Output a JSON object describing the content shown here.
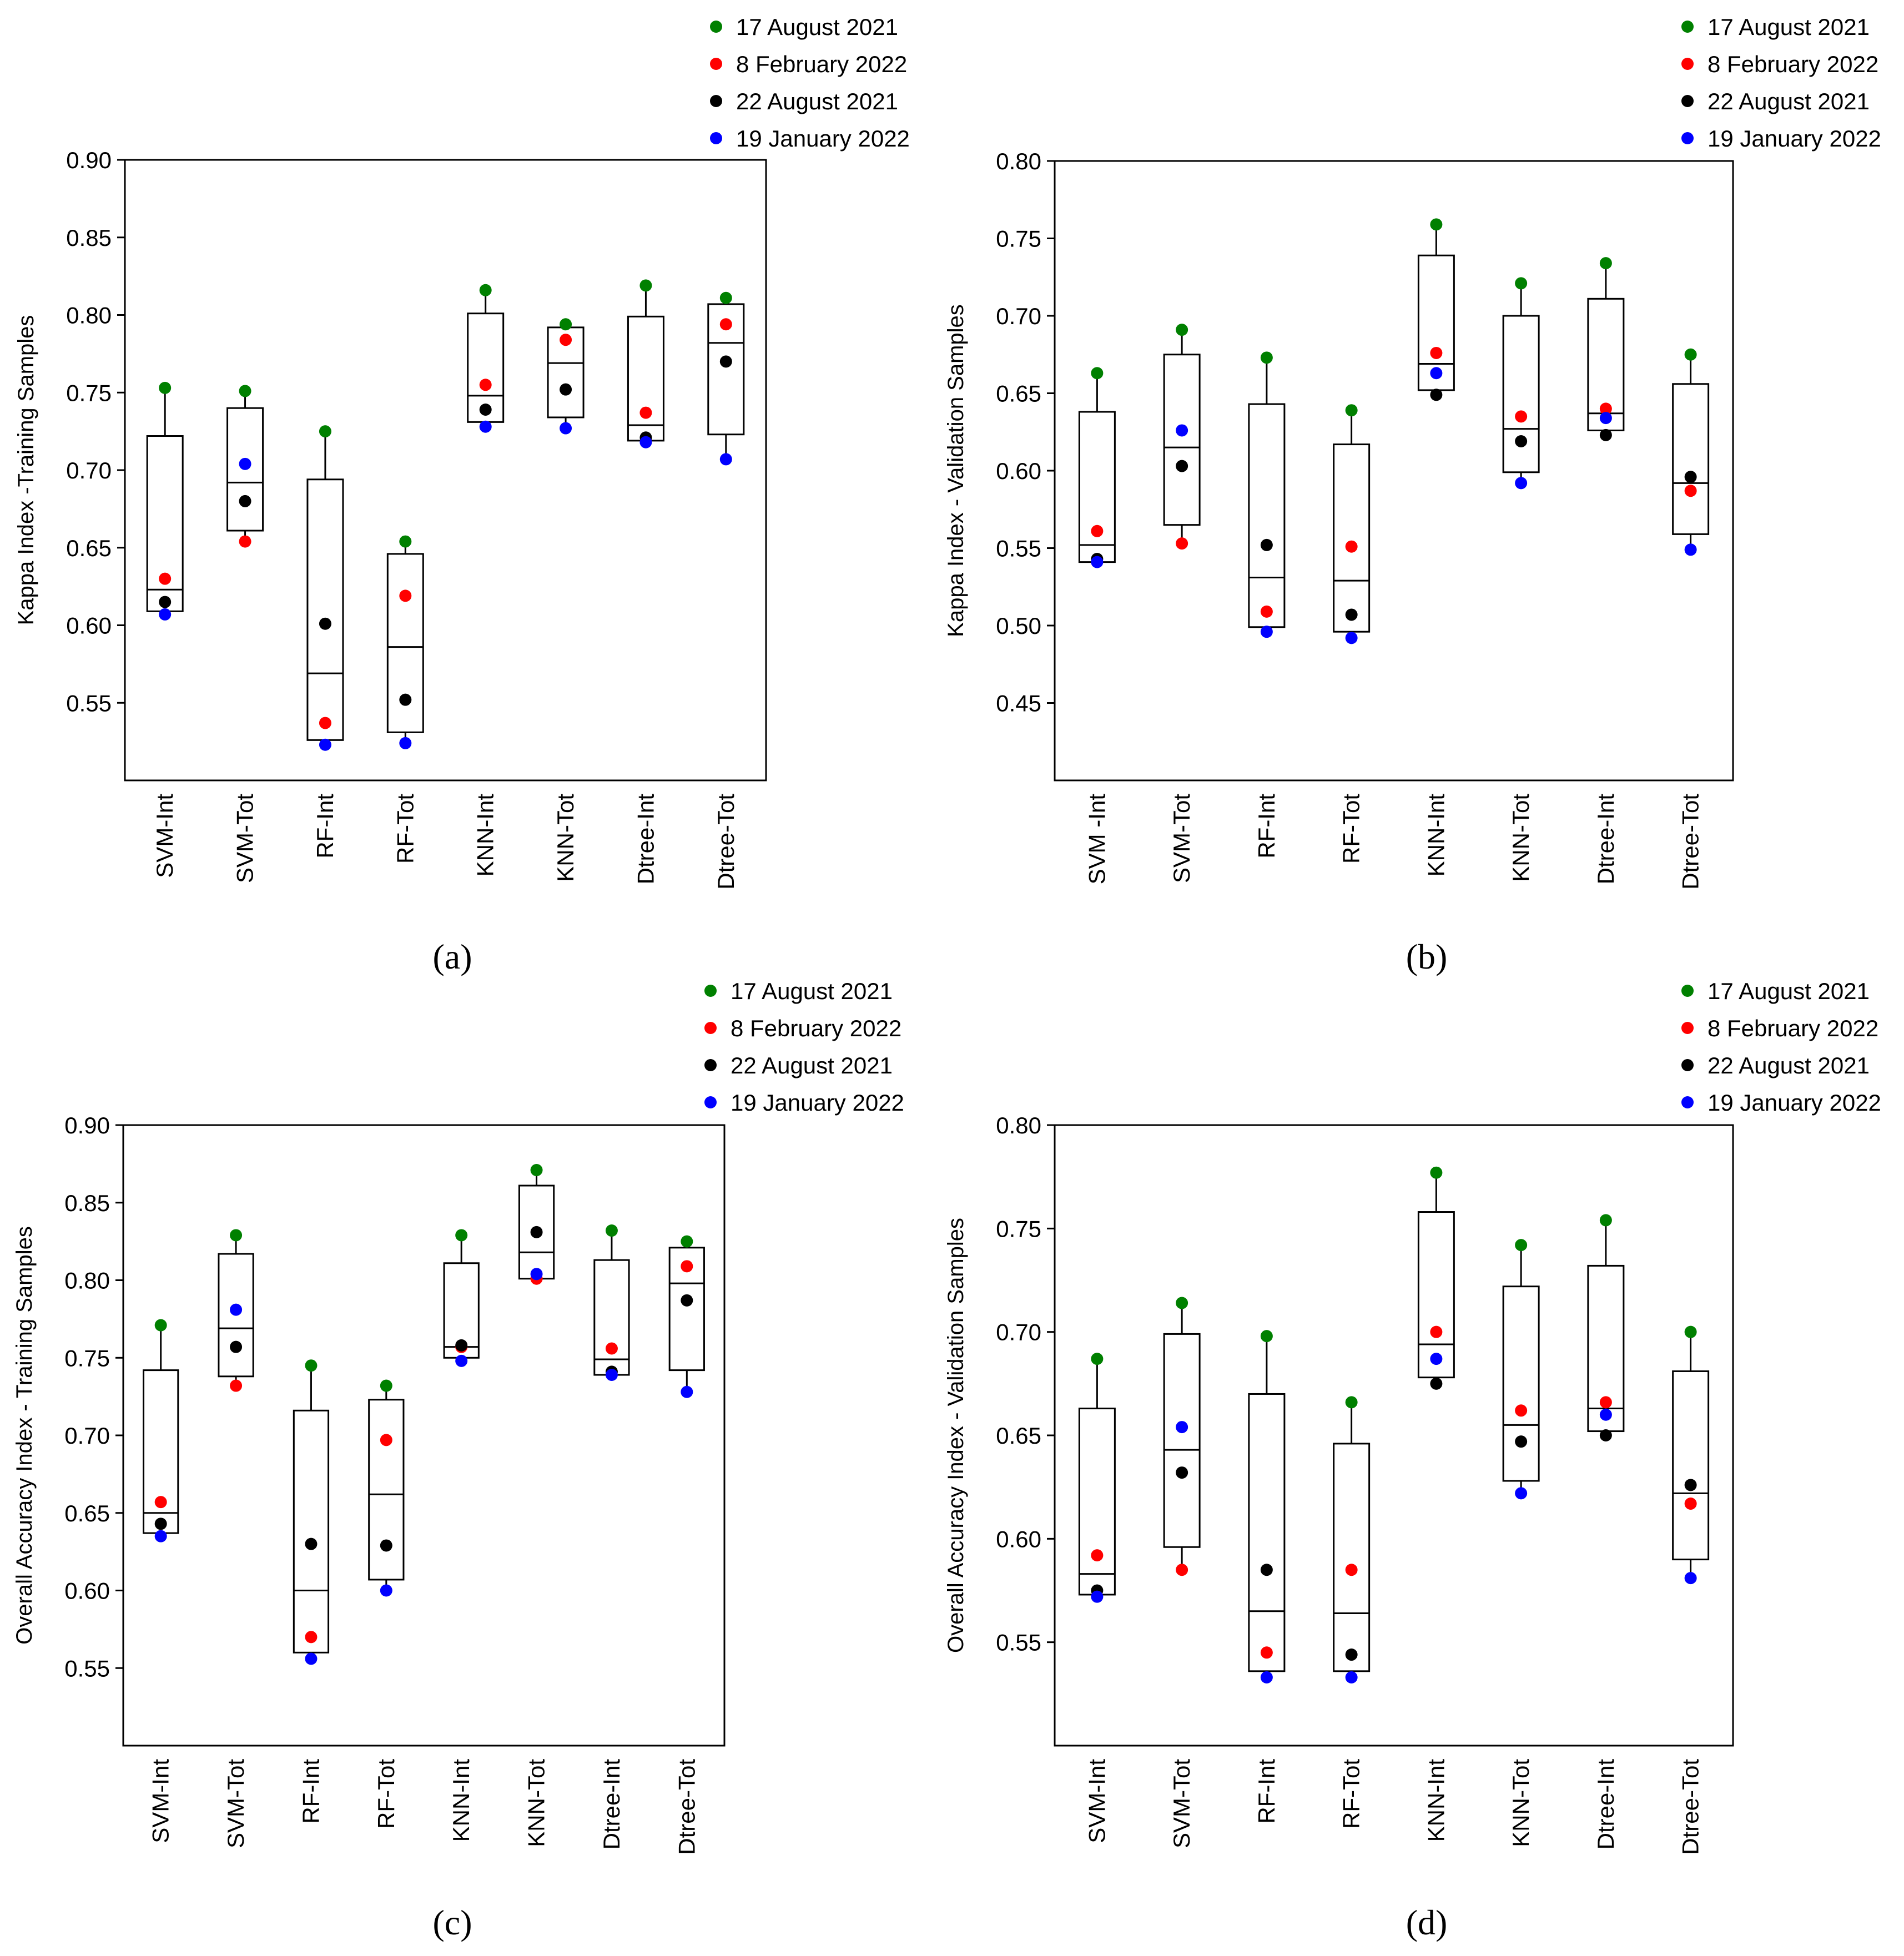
{
  "figure": {
    "legend_entries": [
      {
        "label": "17 August 2021",
        "color": "#008000"
      },
      {
        "label": "8 February 2022",
        "color": "#ff0000"
      },
      {
        "label": "22 August 2021",
        "color": "#000000"
      },
      {
        "label": "19 January 2022",
        "color": "#0000ff"
      }
    ]
  },
  "chart_data": [
    {
      "type": "box",
      "panel_label": "(a)",
      "ylabel": "Kappa Index -Training Samples",
      "xlabel": "",
      "ylim": [
        0.5,
        0.9
      ],
      "yticks": [
        "0.90",
        "0.85",
        "0.80",
        "0.75",
        "0.70",
        "0.65",
        "0.60",
        "0.55"
      ],
      "categories": [
        "SVM-Int",
        "SVM-Tot",
        "RF-Int",
        "RF-Tot",
        "KNN-Int",
        "KNN-Tot",
        "Dtree-Int",
        "Dtree-Tot"
      ],
      "boxes": [
        {
          "q1": 0.609,
          "median": 0.623,
          "q3": 0.722
        },
        {
          "q1": 0.661,
          "median": 0.692,
          "q3": 0.74
        },
        {
          "q1": 0.526,
          "median": 0.569,
          "q3": 0.694
        },
        {
          "q1": 0.531,
          "median": 0.586,
          "q3": 0.646
        },
        {
          "q1": 0.731,
          "median": 0.748,
          "q3": 0.801
        },
        {
          "q1": 0.734,
          "median": 0.769,
          "q3": 0.792
        },
        {
          "q1": 0.719,
          "median": 0.729,
          "q3": 0.799
        },
        {
          "q1": 0.723,
          "median": 0.782,
          "q3": 0.807
        }
      ],
      "series": [
        {
          "name": "17 August 2021",
          "color": "#008000",
          "values": [
            0.753,
            0.751,
            0.725,
            0.654,
            0.816,
            0.794,
            0.819,
            0.811
          ]
        },
        {
          "name": "8 February 2022",
          "color": "#ff0000",
          "values": [
            0.63,
            0.654,
            0.537,
            0.619,
            0.755,
            0.784,
            0.737,
            0.794
          ]
        },
        {
          "name": "22 August 2021",
          "color": "#000000",
          "values": [
            0.615,
            0.68,
            0.601,
            0.552,
            0.739,
            0.752,
            0.721,
            0.77
          ]
        },
        {
          "name": "19 January 2022",
          "color": "#0000ff",
          "values": [
            0.607,
            0.704,
            0.523,
            0.524,
            0.728,
            0.727,
            0.718,
            0.707
          ]
        }
      ]
    },
    {
      "type": "box",
      "panel_label": "(b)",
      "ylabel": "Kappa Index - Validation Samples",
      "xlabel": "",
      "ylim": [
        0.4,
        0.8
      ],
      "yticks": [
        "0.80",
        "0.75",
        "0.70",
        "0.65",
        "0.60",
        "0.55",
        "0.50",
        "0.45"
      ],
      "categories": [
        "SVM -Int",
        "SVM-Tot",
        "RF-Int",
        "RF-Tot",
        "KNN-Int",
        "KNN-Tot",
        "Dtree-Int",
        "Dtree-Tot"
      ],
      "boxes": [
        {
          "q1": 0.541,
          "median": 0.552,
          "q3": 0.638
        },
        {
          "q1": 0.565,
          "median": 0.615,
          "q3": 0.675
        },
        {
          "q1": 0.499,
          "median": 0.531,
          "q3": 0.643
        },
        {
          "q1": 0.496,
          "median": 0.529,
          "q3": 0.617
        },
        {
          "q1": 0.652,
          "median": 0.669,
          "q3": 0.739
        },
        {
          "q1": 0.599,
          "median": 0.627,
          "q3": 0.7
        },
        {
          "q1": 0.626,
          "median": 0.637,
          "q3": 0.711
        },
        {
          "q1": 0.559,
          "median": 0.592,
          "q3": 0.656
        }
      ],
      "series": [
        {
          "name": "17 August 2021",
          "color": "#008000",
          "values": [
            0.663,
            0.691,
            0.673,
            0.639,
            0.759,
            0.721,
            0.734,
            0.675
          ]
        },
        {
          "name": "8 February 2022",
          "color": "#ff0000",
          "values": [
            0.561,
            0.553,
            0.509,
            0.551,
            0.676,
            0.635,
            0.64,
            0.587
          ]
        },
        {
          "name": "22 August 2021",
          "color": "#000000",
          "values": [
            0.543,
            0.603,
            0.552,
            0.507,
            0.649,
            0.619,
            0.623,
            0.596
          ]
        },
        {
          "name": "19 January 2022",
          "color": "#0000ff",
          "values": [
            0.541,
            0.626,
            0.496,
            0.492,
            0.663,
            0.592,
            0.634,
            0.549
          ]
        }
      ]
    },
    {
      "type": "box",
      "panel_label": "(c)",
      "ylabel": "Overall Accuracy Index - Training Samples",
      "xlabel": "",
      "ylim": [
        0.5,
        0.9
      ],
      "yticks": [
        "0.90",
        "0.85",
        "0.80",
        "0.75",
        "0.70",
        "0.65",
        "0.60",
        "0.55"
      ],
      "categories": [
        "SVM-Int",
        "SVM-Tot",
        "RF-Int",
        "RF-Tot",
        "KNN-Int",
        "KNN-Tot",
        "Dtree-Int",
        "Dtree-Tot"
      ],
      "boxes": [
        {
          "q1": 0.637,
          "median": 0.65,
          "q3": 0.742
        },
        {
          "q1": 0.738,
          "median": 0.769,
          "q3": 0.817
        },
        {
          "q1": 0.56,
          "median": 0.6,
          "q3": 0.716
        },
        {
          "q1": 0.607,
          "median": 0.662,
          "q3": 0.723
        },
        {
          "q1": 0.75,
          "median": 0.757,
          "q3": 0.811
        },
        {
          "q1": 0.801,
          "median": 0.818,
          "q3": 0.861
        },
        {
          "q1": 0.739,
          "median": 0.749,
          "q3": 0.813
        },
        {
          "q1": 0.742,
          "median": 0.798,
          "q3": 0.821
        }
      ],
      "series": [
        {
          "name": "17 August 2021",
          "color": "#008000",
          "values": [
            0.771,
            0.829,
            0.745,
            0.732,
            0.829,
            0.871,
            0.832,
            0.825
          ]
        },
        {
          "name": "8 February 2022",
          "color": "#ff0000",
          "values": [
            0.657,
            0.732,
            0.57,
            0.697,
            0.757,
            0.801,
            0.756,
            0.809
          ]
        },
        {
          "name": "22 August 2021",
          "color": "#000000",
          "values": [
            0.643,
            0.757,
            0.63,
            0.629,
            0.758,
            0.831,
            0.741,
            0.787
          ]
        },
        {
          "name": "19 January 2022",
          "color": "#0000ff",
          "values": [
            0.635,
            0.781,
            0.556,
            0.6,
            0.748,
            0.804,
            0.739,
            0.728
          ]
        }
      ]
    },
    {
      "type": "box",
      "panel_label": "(d)",
      "ylabel": "Overall Accuracy Index - Validation Samples",
      "xlabel": "",
      "ylim": [
        0.5,
        0.8
      ],
      "yticks": [
        "0.80",
        "0.75",
        "0.70",
        "0.65",
        "0.60",
        "0.55"
      ],
      "categories": [
        "SVM-Int",
        "SVM-Tot",
        "RF-Int",
        "RF-Tot",
        "KNN-Int",
        "KNN-Tot",
        "Dtree-Int",
        "Dtree-Tot"
      ],
      "boxes": [
        {
          "q1": 0.573,
          "median": 0.583,
          "q3": 0.663
        },
        {
          "q1": 0.596,
          "median": 0.643,
          "q3": 0.699
        },
        {
          "q1": 0.536,
          "median": 0.565,
          "q3": 0.67
        },
        {
          "q1": 0.536,
          "median": 0.564,
          "q3": 0.646
        },
        {
          "q1": 0.678,
          "median": 0.694,
          "q3": 0.758
        },
        {
          "q1": 0.628,
          "median": 0.655,
          "q3": 0.722
        },
        {
          "q1": 0.652,
          "median": 0.663,
          "q3": 0.732
        },
        {
          "q1": 0.59,
          "median": 0.622,
          "q3": 0.681
        }
      ],
      "series": [
        {
          "name": "17 August 2021",
          "color": "#008000",
          "values": [
            0.687,
            0.714,
            0.698,
            0.666,
            0.777,
            0.742,
            0.754,
            0.7
          ]
        },
        {
          "name": "8 February 2022",
          "color": "#ff0000",
          "values": [
            0.592,
            0.585,
            0.545,
            0.585,
            0.7,
            0.662,
            0.666,
            0.617
          ]
        },
        {
          "name": "22 August 2021",
          "color": "#000000",
          "values": [
            0.575,
            0.632,
            0.585,
            0.544,
            0.675,
            0.647,
            0.65,
            0.626
          ]
        },
        {
          "name": "19 January 2022",
          "color": "#0000ff",
          "values": [
            0.572,
            0.654,
            0.533,
            0.533,
            0.687,
            0.622,
            0.66,
            0.581
          ]
        }
      ]
    }
  ]
}
